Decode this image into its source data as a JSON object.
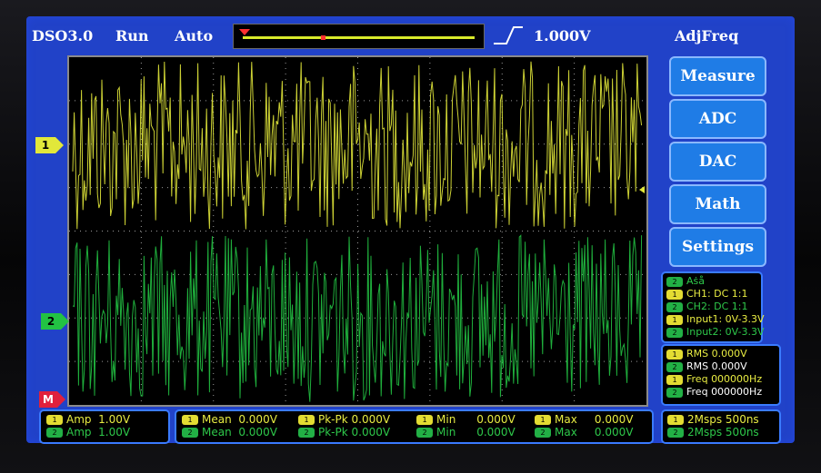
{
  "topbar": {
    "device": "DSO3.0",
    "run_state": "Run",
    "trigger_mode": "Auto",
    "trigger_level": "1.000V",
    "function": "AdjFreq"
  },
  "channels": {
    "ch1_marker": "1",
    "ch2_marker": "2",
    "math_marker": "M",
    "colors": {
      "ch1": "#e2e83a",
      "ch2": "#22c243",
      "math": "#e0203c"
    }
  },
  "menu": {
    "items": [
      "Measure",
      "ADC",
      "DAC",
      "Math",
      "Settings"
    ]
  },
  "info_panel": {
    "rows": [
      {
        "badge": "2",
        "text": "Aṡå",
        "color": "g"
      },
      {
        "badge": "1",
        "text": "CH1: DC 1:1",
        "color": "y"
      },
      {
        "badge": "2",
        "text": "CH2: DC 1:1",
        "color": "g"
      },
      {
        "badge": "1",
        "text": "Input1: 0V-3.3V",
        "color": "y"
      },
      {
        "badge": "2",
        "text": "Input2: 0V-3.3V",
        "color": "g"
      }
    ]
  },
  "measure_panel": {
    "rows": [
      {
        "badge": "1",
        "label": "RMS",
        "value": "0.000V",
        "color": "y"
      },
      {
        "badge": "2",
        "label": "RMS",
        "value": "0.000V",
        "color": "w"
      },
      {
        "badge": "1",
        "label": "Freq",
        "value": "000000Hz",
        "color": "y"
      },
      {
        "badge": "2",
        "label": "Freq",
        "value": "000000Hz",
        "color": "w"
      }
    ]
  },
  "bottom": {
    "amp": [
      {
        "badge": "1",
        "label": "Amp",
        "value": "1.00V"
      },
      {
        "badge": "2",
        "label": "Amp",
        "value": "1.00V"
      }
    ],
    "stats": {
      "ch1": [
        {
          "label": "Mean",
          "value": "0.000V"
        },
        {
          "label": "Pk-Pk",
          "value": "0.000V"
        },
        {
          "label": "Min",
          "value": "0.000V"
        },
        {
          "label": "Max",
          "value": "0.000V"
        }
      ],
      "ch2": [
        {
          "label": "Mean",
          "value": "0.000V"
        },
        {
          "label": "Pk-Pk",
          "value": "0.000V"
        },
        {
          "label": "Min",
          "value": "0.000V"
        },
        {
          "label": "Max",
          "value": "0.000V"
        }
      ]
    },
    "timebase": [
      {
        "badge": "1",
        "text": "2Msps 500ns"
      },
      {
        "badge": "2",
        "text": "2Msps 500ns"
      }
    ]
  }
}
